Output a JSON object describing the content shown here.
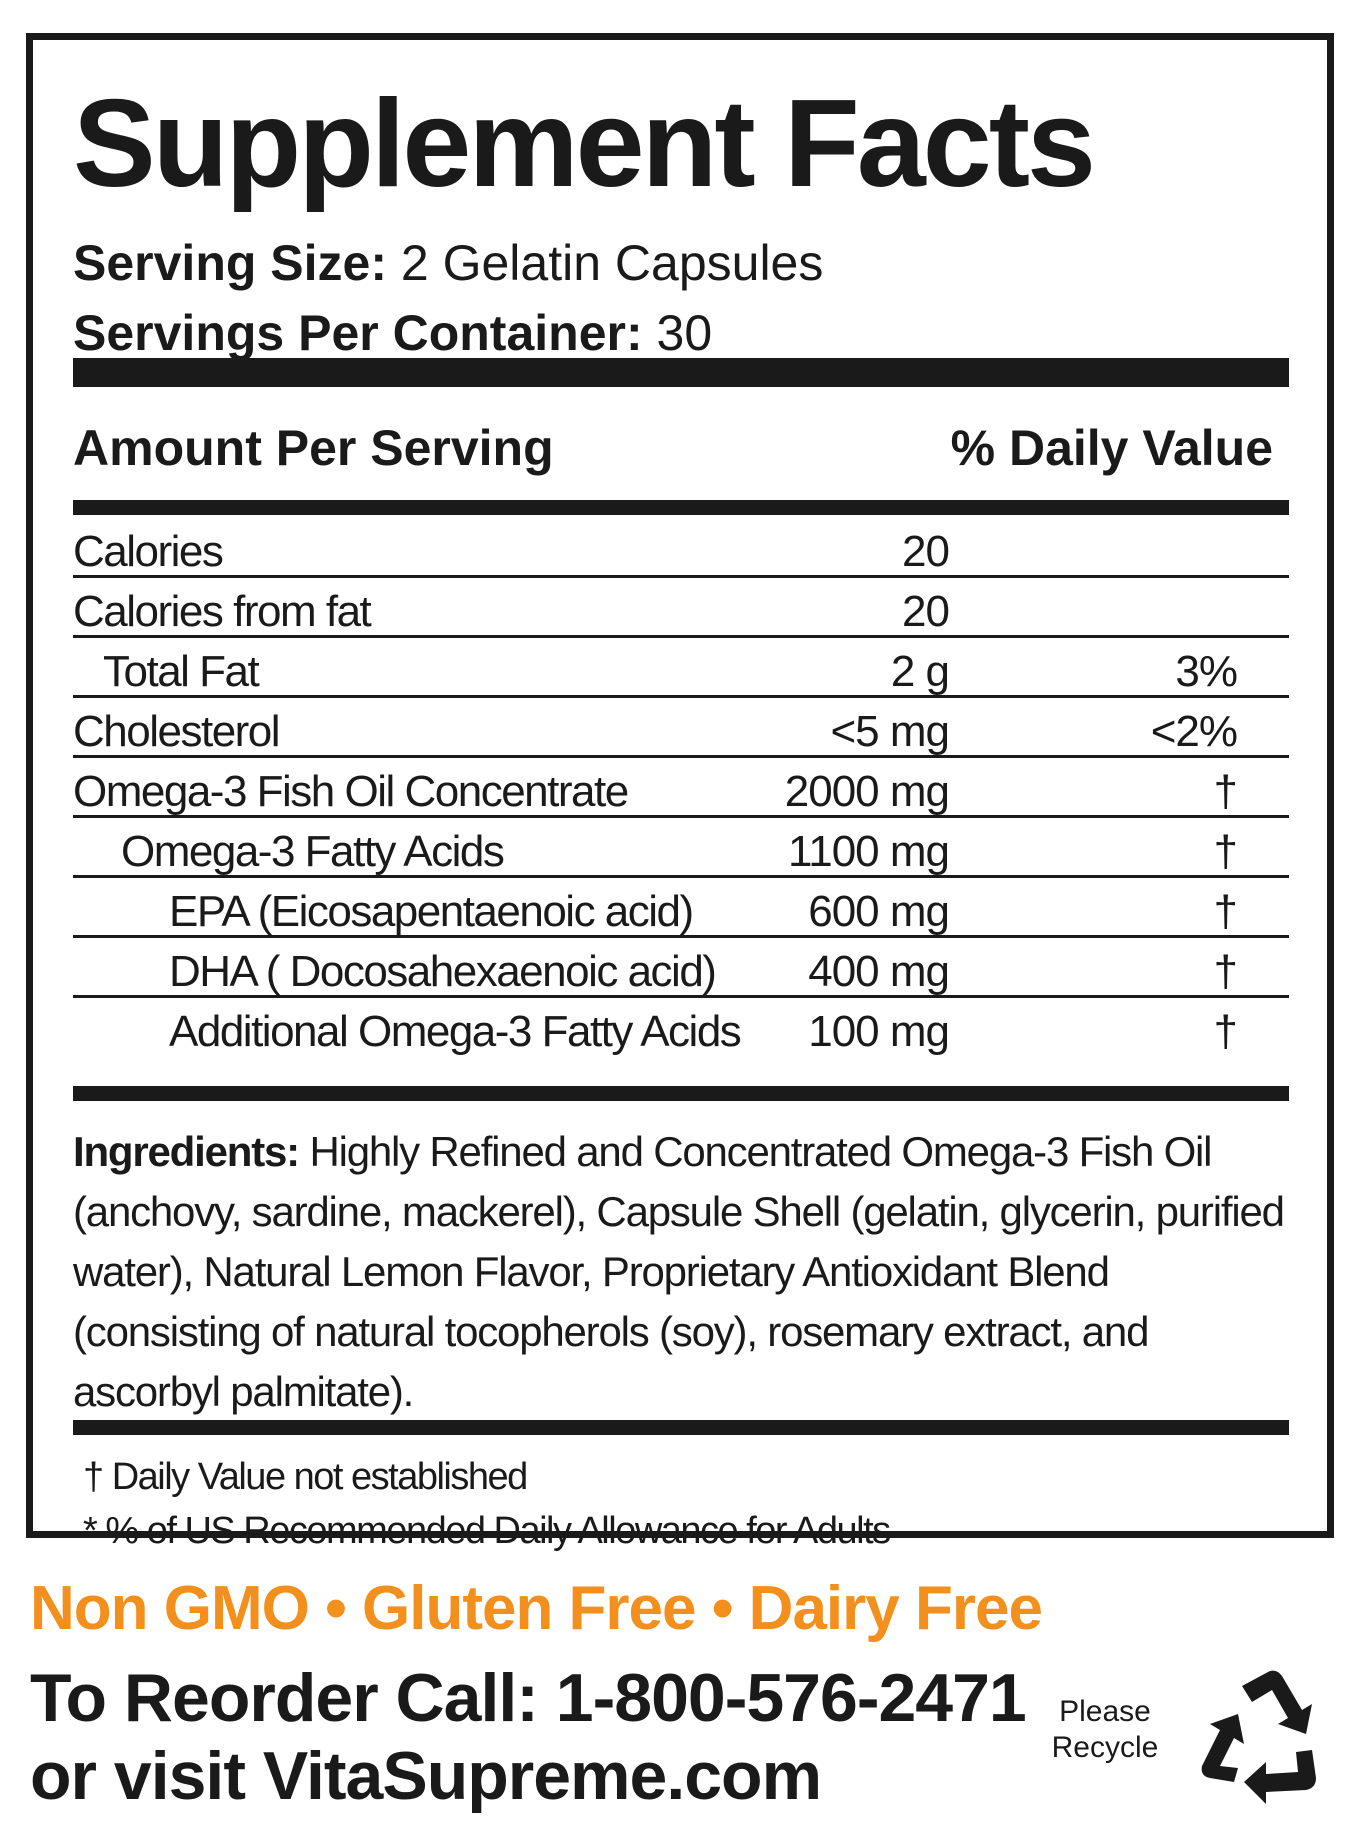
{
  "label": {
    "title": "Supplement Facts",
    "serving_size_label": "Serving Size:",
    "serving_size_value": "2 Gelatin Capsules",
    "servings_per_container_label": "Servings Per Container:",
    "servings_per_container_value": "30",
    "amount_header": "Amount Per Serving",
    "daily_value_header": "% Daily Value",
    "nutrients": [
      {
        "name": "Calories",
        "amount": "20",
        "dv": ""
      },
      {
        "name": "Calories from fat",
        "amount": "20",
        "dv": ""
      },
      {
        "name": "Total Fat",
        "amount": "2 g",
        "dv": "3%"
      },
      {
        "name": "Cholesterol",
        "amount": "<5 mg",
        "dv": "<2%"
      },
      {
        "name": "Omega-3 Fish Oil Concentrate",
        "amount": "2000 mg",
        "dv": "†"
      },
      {
        "name": "Omega-3 Fatty Acids",
        "amount": "1100 mg",
        "dv": "†"
      },
      {
        "name": "EPA (Eicosapentaenoic acid)",
        "amount": "600 mg",
        "dv": "†"
      },
      {
        "name": "DHA ( Docosahexaenoic acid)",
        "amount": "400 mg",
        "dv": "†"
      },
      {
        "name": "Additional Omega-3 Fatty Acids",
        "amount": "100 mg",
        "dv": "†"
      }
    ],
    "ingredients_label": "Ingredients:",
    "ingredients_text": "Highly Refined and Concentrated Omega-3 Fish Oil (anchovy, sardine, mackerel), Capsule Shell (gelatin, glycerin, purified water), Natural Lemon Flavor, Proprietary Antioxidant Blend (consisting of natural tocopherols (soy), rosemary extract, and ascorbyl palmitate).",
    "footnote_dagger": "† Daily Value not established",
    "footnote_asterisk": "* % of US Recommended Daily Allowance for Adults"
  },
  "footer": {
    "badges": "Non GMO • Gluten Free • Dairy Free",
    "reorder_line1": "To Reorder Call: 1-800-576-2471",
    "reorder_line2": "or visit VitaSupreme.com",
    "recycle_line1": "Please",
    "recycle_line2": "Recycle",
    "recycle_icon": "recycle-icon"
  },
  "colors": {
    "text": "#1a1a1a",
    "accent_orange": "#f3901d",
    "background": "#ffffff"
  }
}
